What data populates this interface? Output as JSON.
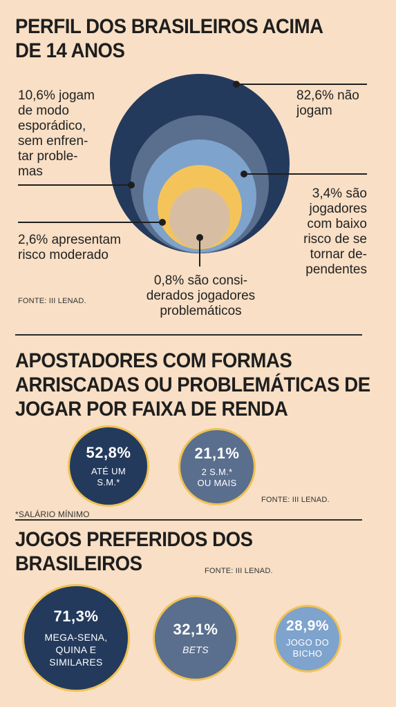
{
  "section1": {
    "title_line1": "PERFIL DOS BRASILEIROS ACIMA",
    "title_line2": "DE 14 ANOS",
    "source": "FONTE: III LENAD."
  },
  "section2": {
    "title_line1": "APOSTADORES COM FORMAS",
    "title_line2": "ARRISCADAS OU PROBLEMÁTICAS DE",
    "title_line3": "JOGAR POR FAIXA DE RENDA",
    "footnote": "*SALÁRIO MÍNIMO",
    "source": "FONTE: III LENAD."
  },
  "section3": {
    "title_line1": "JOGOS PREFERIDOS DOS",
    "title_line2": "BRASILEIROS",
    "source": "FONTE: III LENAD."
  },
  "chart_data": [
    {
      "type": "pie",
      "title": "PERFIL DOS BRASILEIROS ACIMA DE 14 ANOS",
      "style": "nested circles",
      "categories": [
        "não jogam",
        "jogam de modo esporádico, sem enfrentar problemas",
        "jogadores com baixo risco de se tornar dependentes",
        "apresentam risco moderado",
        "considerados jogadores problemáticos"
      ],
      "values": [
        82.6,
        10.6,
        3.4,
        2.6,
        0.8
      ],
      "unit": "%",
      "colors": [
        "#233a5c",
        "#5a6f8e",
        "#7ea3cc",
        "#f4c45b",
        "#d7bea3"
      ],
      "labels": [
        "82,6% não\njogam",
        "10,6% jogam\nde modo\nesporádico,\nsem enfren-\ntar proble-\nmas",
        "3,4% são\njogadores\ncom baixo\nrisco de se\ntornar de-\npendentes",
        "2,6% apresentam\nrisco moderado",
        "0,8% são consi-\nderados jogadores\nproblemáticos"
      ]
    },
    {
      "type": "bar",
      "style": "bubbles",
      "title": "APOSTADORES COM FORMAS ARRISCADAS OU PROBLEMÁTICAS DE JOGAR POR FAIXA DE RENDA",
      "categories": [
        "ATÉ UM S.M.*",
        "2 S.M.* OU MAIS"
      ],
      "values": [
        52.8,
        21.1
      ],
      "value_labels": [
        "52,8%",
        "21,1%"
      ],
      "category_labels": [
        "ATÉ UM\nS.M.*",
        "2 S.M.*\nOU MAIS"
      ],
      "colors": [
        "#233a5c",
        "#5a6f8e"
      ]
    },
    {
      "type": "bar",
      "style": "bubbles",
      "title": "JOGOS PREFERIDOS DOS BRASILEIROS",
      "categories": [
        "MEGA-SENA, QUINA E SIMILARES",
        "BETS",
        "JOGO DO BICHO"
      ],
      "values": [
        71.3,
        32.1,
        28.9
      ],
      "value_labels": [
        "71,3%",
        "32,1%",
        "28,9%"
      ],
      "category_labels": [
        "MEGA-SENA,\nQUINA E\nSIMILARES",
        "BETS",
        "JOGO DO\nBICHO"
      ],
      "colors": [
        "#233a5c",
        "#5a6f8e",
        "#7ea3cc"
      ]
    }
  ]
}
